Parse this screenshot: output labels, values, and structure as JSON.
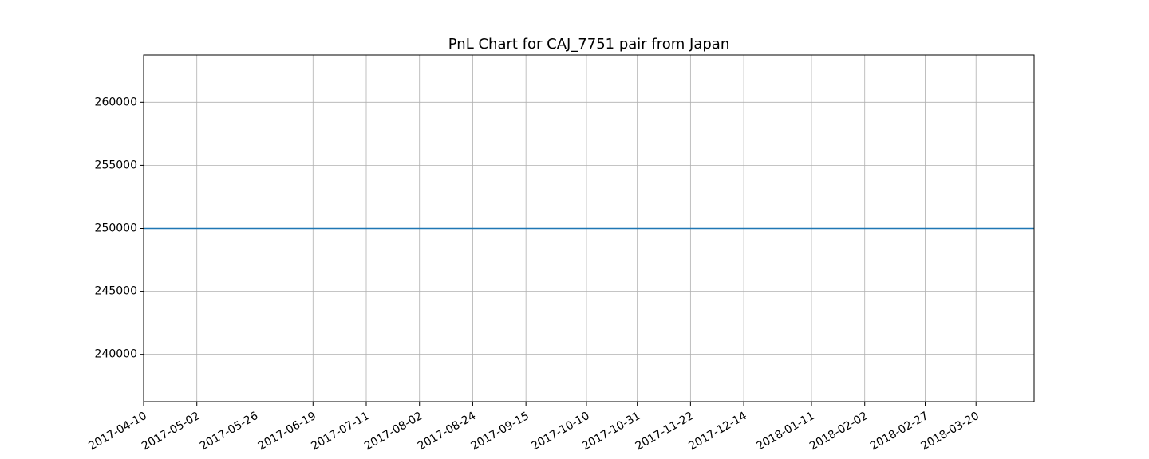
{
  "chart_data": {
    "type": "line",
    "title": "PnL Chart for CAJ_7751 pair from Japan",
    "xlabel": "",
    "ylabel": "",
    "x_tick_labels": [
      "2017-04-10",
      "2017-05-02",
      "2017-05-26",
      "2017-06-19",
      "2017-07-11",
      "2017-08-02",
      "2017-08-24",
      "2017-09-15",
      "2017-10-10",
      "2017-10-31",
      "2017-11-22",
      "2017-12-14",
      "2018-01-11",
      "2018-02-02",
      "2018-02-27",
      "2018-03-20"
    ],
    "xlim": [
      "2017-04-10",
      "2018-04-13"
    ],
    "y_ticks": [
      240000,
      245000,
      250000,
      255000,
      260000
    ],
    "ylim": [
      236250,
      263750
    ],
    "grid": true,
    "series": [
      {
        "color": "#1f77b4",
        "points": [
          {
            "x": "2017-04-10",
            "y": 250000
          },
          {
            "x": "2018-04-13",
            "y": 250000
          }
        ]
      }
    ]
  }
}
